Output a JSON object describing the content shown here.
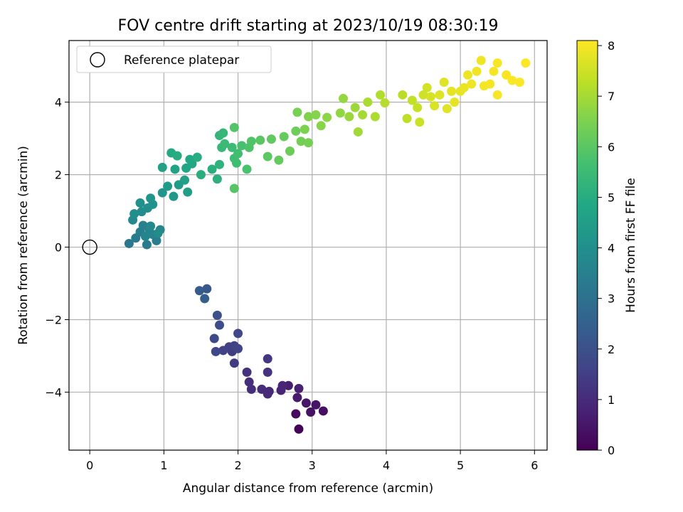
{
  "chart_data": {
    "type": "scatter",
    "title": "FOV centre drift starting at 2023/10/19 08:30:19",
    "xlabel": "Angular distance from reference (arcmin)",
    "ylabel": "Rotation from reference (arcmin)",
    "colorbar_label": "Hours from first FF file",
    "xlim": [
      -0.28,
      6.17
    ],
    "ylim": [
      -5.6,
      5.7
    ],
    "xticks": [
      0,
      1,
      2,
      3,
      4,
      5,
      6
    ],
    "yticks": [
      -4,
      -2,
      0,
      2,
      4
    ],
    "xtick_labels": [
      "0",
      "1",
      "2",
      "3",
      "4",
      "5",
      "6"
    ],
    "ytick_labels": [
      "−4",
      "−2",
      "0",
      "2",
      "4"
    ],
    "colorbar_range": [
      0,
      8.1
    ],
    "colorbar_ticks": [
      0,
      1,
      2,
      3,
      4,
      5,
      6,
      7,
      8
    ],
    "colorbar_tick_labels": [
      "0",
      "1",
      "2",
      "3",
      "4",
      "5",
      "6",
      "7",
      "8"
    ],
    "colormap": "viridis",
    "grid": true,
    "legend": {
      "position": "top-left",
      "entries": [
        {
          "label": "Reference platepar",
          "marker": "open-circle",
          "x": 0,
          "y": 0
        }
      ]
    },
    "series": [
      {
        "points": [
          [
            2.82,
            -5.02,
            0.1
          ],
          [
            2.78,
            -4.6,
            0.2
          ],
          [
            3.15,
            -4.52,
            0.3
          ],
          [
            2.98,
            -4.55,
            0.4
          ],
          [
            3.05,
            -4.35,
            0.45
          ],
          [
            2.92,
            -4.3,
            0.5
          ],
          [
            2.8,
            -4.15,
            0.6
          ],
          [
            2.68,
            -3.82,
            0.7
          ],
          [
            2.82,
            -3.9,
            0.75
          ],
          [
            2.58,
            -3.95,
            0.8
          ],
          [
            2.6,
            -3.82,
            0.85
          ],
          [
            2.42,
            -3.98,
            0.9
          ],
          [
            2.4,
            -4.05,
            0.95
          ],
          [
            2.32,
            -3.92,
            1.0
          ],
          [
            2.18,
            -3.92,
            1.05
          ],
          [
            2.15,
            -3.72,
            1.1
          ],
          [
            2.12,
            -3.45,
            1.15
          ],
          [
            2.4,
            -3.45,
            1.2
          ],
          [
            2.4,
            -3.08,
            1.3
          ],
          [
            1.95,
            -3.2,
            1.4
          ],
          [
            1.92,
            -2.88,
            1.45
          ],
          [
            1.88,
            -2.75,
            1.5
          ],
          [
            1.8,
            -2.85,
            1.55
          ],
          [
            1.95,
            -2.72,
            1.6
          ],
          [
            2.0,
            -2.8,
            1.65
          ],
          [
            1.7,
            -2.88,
            1.7
          ],
          [
            2.0,
            -2.38,
            1.75
          ],
          [
            1.68,
            -2.52,
            1.8
          ],
          [
            1.75,
            -2.15,
            1.9
          ],
          [
            1.72,
            -1.88,
            2.0
          ],
          [
            1.58,
            -1.15,
            2.2
          ],
          [
            1.48,
            -1.2,
            2.3
          ],
          [
            1.55,
            -1.42,
            2.4
          ],
          [
            0.53,
            0.1,
            3.2
          ],
          [
            0.62,
            0.25,
            3.3
          ],
          [
            0.77,
            0.07,
            3.35
          ],
          [
            0.9,
            0.18,
            3.4
          ],
          [
            0.68,
            0.42,
            3.45
          ],
          [
            0.72,
            0.6,
            3.5
          ],
          [
            0.8,
            0.5,
            3.55
          ],
          [
            0.85,
            0.35,
            3.6
          ],
          [
            0.75,
            0.3,
            3.65
          ],
          [
            0.95,
            0.48,
            3.7
          ],
          [
            0.82,
            0.58,
            3.75
          ],
          [
            0.58,
            0.75,
            3.8
          ],
          [
            0.92,
            0.38,
            3.85
          ],
          [
            0.7,
            0.98,
            3.9
          ],
          [
            0.6,
            0.92,
            3.95
          ],
          [
            0.78,
            1.08,
            4.0
          ],
          [
            0.68,
            1.22,
            4.05
          ],
          [
            0.85,
            1.18,
            4.1
          ],
          [
            0.82,
            1.35,
            4.15
          ],
          [
            0.98,
            1.5,
            4.2
          ],
          [
            1.13,
            1.4,
            4.3
          ],
          [
            1.05,
            1.68,
            4.4
          ],
          [
            1.2,
            1.72,
            4.45
          ],
          [
            1.32,
            1.52,
            4.5
          ],
          [
            1.28,
            1.85,
            4.55
          ],
          [
            0.98,
            2.2,
            4.6
          ],
          [
            1.15,
            2.15,
            4.7
          ],
          [
            1.3,
            2.18,
            4.75
          ],
          [
            1.38,
            2.3,
            4.8
          ],
          [
            1.35,
            2.42,
            4.85
          ],
          [
            1.1,
            2.6,
            4.9
          ],
          [
            1.18,
            2.52,
            4.95
          ],
          [
            1.45,
            2.48,
            5.0
          ],
          [
            1.5,
            2.0,
            5.05
          ],
          [
            1.65,
            2.15,
            5.1
          ],
          [
            1.72,
            1.88,
            5.15
          ],
          [
            1.75,
            2.28,
            5.2
          ],
          [
            1.75,
            3.08,
            5.3
          ],
          [
            1.8,
            3.15,
            5.35
          ],
          [
            1.78,
            2.75,
            5.4
          ],
          [
            1.82,
            2.85,
            5.45
          ],
          [
            1.92,
            2.75,
            5.5
          ],
          [
            1.95,
            2.45,
            5.55
          ],
          [
            1.98,
            2.32,
            5.6
          ],
          [
            2.0,
            2.58,
            5.65
          ],
          [
            2.05,
            2.8,
            5.7
          ],
          [
            2.12,
            2.15,
            5.75
          ],
          [
            2.15,
            2.75,
            5.8
          ],
          [
            2.18,
            2.92,
            5.85
          ],
          [
            1.95,
            3.3,
            5.9
          ],
          [
            1.95,
            1.62,
            5.95
          ],
          [
            2.3,
            2.95,
            6.0
          ],
          [
            2.4,
            2.5,
            6.05
          ],
          [
            2.45,
            2.98,
            6.1
          ],
          [
            2.55,
            2.4,
            6.15
          ],
          [
            2.62,
            3.05,
            6.2
          ],
          [
            2.7,
            2.65,
            6.25
          ],
          [
            2.78,
            3.2,
            6.3
          ],
          [
            2.85,
            2.92,
            6.35
          ],
          [
            2.95,
            2.88,
            6.4
          ],
          [
            2.8,
            3.72,
            6.45
          ],
          [
            2.9,
            3.25,
            6.5
          ],
          [
            2.95,
            3.6,
            6.55
          ],
          [
            3.05,
            3.65,
            6.6
          ],
          [
            3.12,
            3.35,
            6.65
          ],
          [
            3.2,
            3.58,
            6.7
          ],
          [
            3.38,
            3.7,
            6.75
          ],
          [
            3.42,
            4.1,
            6.8
          ],
          [
            3.5,
            3.6,
            6.85
          ],
          [
            3.58,
            3.85,
            6.9
          ],
          [
            3.62,
            3.18,
            6.95
          ],
          [
            3.68,
            3.65,
            7.0
          ],
          [
            3.75,
            4.0,
            7.05
          ],
          [
            3.85,
            3.6,
            7.1
          ],
          [
            3.92,
            4.2,
            7.15
          ],
          [
            3.98,
            3.98,
            7.2
          ],
          [
            4.22,
            4.2,
            7.25
          ],
          [
            4.28,
            3.55,
            7.3
          ],
          [
            4.35,
            4.05,
            7.35
          ],
          [
            4.42,
            3.85,
            7.4
          ],
          [
            4.45,
            3.45,
            7.45
          ],
          [
            4.5,
            4.2,
            7.5
          ],
          [
            4.55,
            4.4,
            7.55
          ],
          [
            4.6,
            4.15,
            7.6
          ],
          [
            4.65,
            3.9,
            7.65
          ],
          [
            4.72,
            4.2,
            7.7
          ],
          [
            4.78,
            4.55,
            7.72
          ],
          [
            4.82,
            3.82,
            7.75
          ],
          [
            4.88,
            4.3,
            7.78
          ],
          [
            4.92,
            4.0,
            7.8
          ],
          [
            5.0,
            4.3,
            7.82
          ],
          [
            5.05,
            4.4,
            7.85
          ],
          [
            5.1,
            4.75,
            7.88
          ],
          [
            5.15,
            4.5,
            7.9
          ],
          [
            5.22,
            4.85,
            7.92
          ],
          [
            5.28,
            5.15,
            7.94
          ],
          [
            5.32,
            4.45,
            7.96
          ],
          [
            5.4,
            4.5,
            7.98
          ],
          [
            5.45,
            4.85,
            8.0
          ],
          [
            5.5,
            4.2,
            8.02
          ],
          [
            5.5,
            5.08,
            8.03
          ],
          [
            5.62,
            4.75,
            8.04
          ],
          [
            5.7,
            4.6,
            8.05
          ],
          [
            5.8,
            4.55,
            8.06
          ],
          [
            5.88,
            5.08,
            8.08
          ]
        ]
      }
    ]
  }
}
